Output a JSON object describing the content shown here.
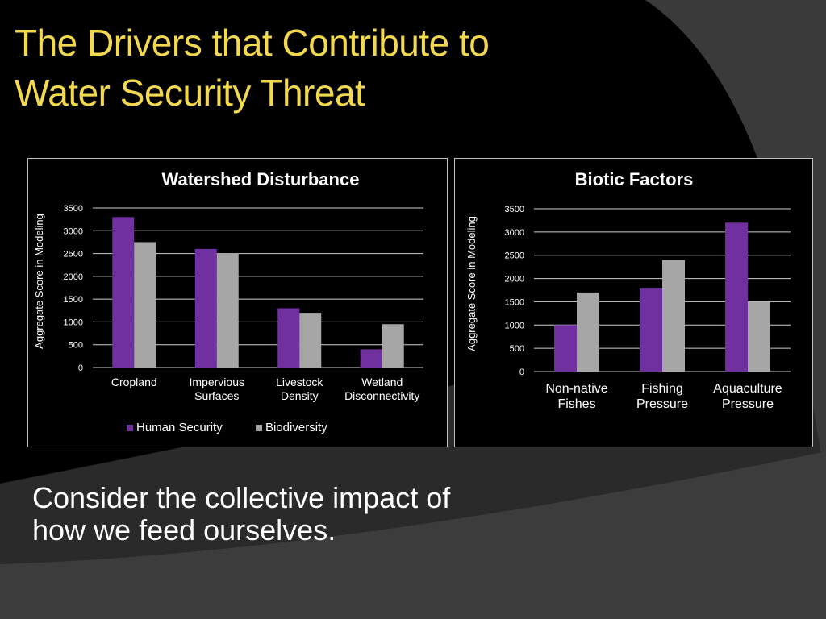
{
  "slide": {
    "title_line1": "The Drivers that Contribute to",
    "title_line2": "Water Security Threat",
    "body_line1": "Consider the collective impact of",
    "body_line2": "how we feed ourselves."
  },
  "colors": {
    "title": "#f2d94e",
    "human_security": "#7030a0",
    "biodiversity": "#a6a6a6",
    "panel_border": "#bfbfbf",
    "background_shape": "#3c3c3c"
  },
  "chart_data": [
    {
      "type": "bar",
      "title": "Watershed Disturbance",
      "ylabel": "Aggregate Score in Modeling",
      "xlabel": "",
      "categories": [
        [
          "Cropland"
        ],
        [
          "Impervious",
          "Surfaces"
        ],
        [
          "Livestock",
          "Density"
        ],
        [
          "Wetland",
          "Disconnectivity"
        ]
      ],
      "series": [
        {
          "name": "Human Security",
          "values": [
            3300,
            2600,
            1300,
            400
          ]
        },
        {
          "name": "Biodiversity",
          "values": [
            2750,
            2500,
            1200,
            950
          ]
        }
      ],
      "ylim": [
        0,
        3500
      ],
      "yticks": [
        "0",
        "500",
        "1000",
        "1500",
        "2000",
        "2500",
        "3000",
        "3500"
      ],
      "grid": true,
      "legend": "bottom"
    },
    {
      "type": "bar",
      "title": "Biotic Factors",
      "ylabel": "Aggregate Score in Modeling",
      "xlabel": "",
      "categories": [
        [
          "Non-native",
          "Fishes"
        ],
        [
          "Fishing",
          "Pressure"
        ],
        [
          "Aquaculture",
          "Pressure"
        ]
      ],
      "series": [
        {
          "values": [
            1000,
            1800,
            3200
          ]
        },
        {
          "values": [
            1700,
            2400,
            1500
          ]
        }
      ],
      "ylim": [
        0,
        3500
      ],
      "yticks": [
        "0",
        "500",
        "1000",
        "1500",
        "2000",
        "2500",
        "3000",
        "3500"
      ],
      "grid": true,
      "legend": "none"
    }
  ]
}
